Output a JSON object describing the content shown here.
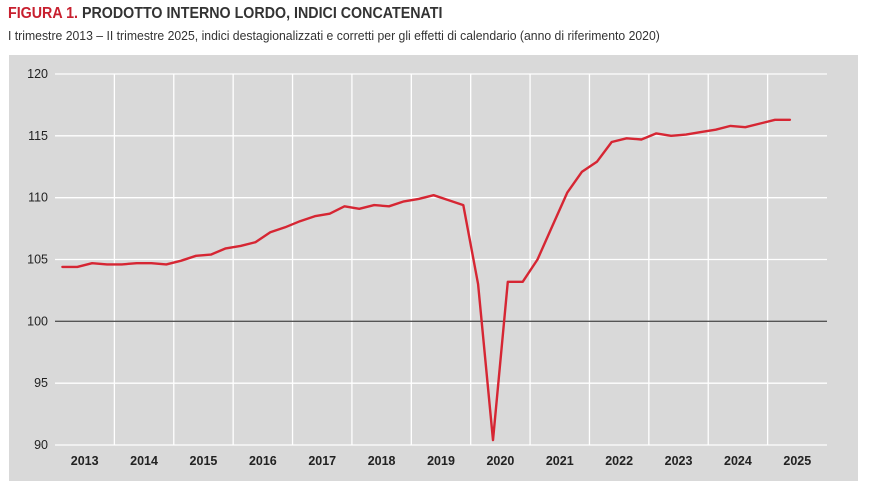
{
  "header": {
    "figure_label": "FIGURA 1.",
    "title": "PRODOTTO INTERNO LORDO, INDICI CONCATENATI",
    "subtitle": "I trimestre 2013 – II trimestre 2025, indici destagionalizzati e corretti per gli effetti di calendario (anno di riferimento 2020)"
  },
  "chart_data": {
    "type": "line",
    "title": "PRODOTTO INTERNO LORDO, INDICI CONCATENATI",
    "subtitle": "I trimestre 2013 – II trimestre 2025, indici destagionalizzati e corretti per gli effetti di calendario (anno di riferimento 2020)",
    "xlabel": "",
    "ylabel": "",
    "ylim": [
      90,
      120
    ],
    "yticks": [
      90,
      95,
      100,
      105,
      110,
      115,
      120
    ],
    "reference_line": 100,
    "grid": true,
    "legend": "none",
    "line_color": "#d62633",
    "years": [
      "2013",
      "2014",
      "2015",
      "2016",
      "2017",
      "2018",
      "2019",
      "2020",
      "2021",
      "2022",
      "2023",
      "2024",
      "2025"
    ],
    "x": [
      "2013-Q1",
      "2013-Q2",
      "2013-Q3",
      "2013-Q4",
      "2014-Q1",
      "2014-Q2",
      "2014-Q3",
      "2014-Q4",
      "2015-Q1",
      "2015-Q2",
      "2015-Q3",
      "2015-Q4",
      "2016-Q1",
      "2016-Q2",
      "2016-Q3",
      "2016-Q4",
      "2017-Q1",
      "2017-Q2",
      "2017-Q3",
      "2017-Q4",
      "2018-Q1",
      "2018-Q2",
      "2018-Q3",
      "2018-Q4",
      "2019-Q1",
      "2019-Q2",
      "2019-Q3",
      "2019-Q4",
      "2020-Q1",
      "2020-Q2",
      "2020-Q3",
      "2020-Q4",
      "2021-Q1",
      "2021-Q2",
      "2021-Q3",
      "2021-Q4",
      "2022-Q1",
      "2022-Q2",
      "2022-Q3",
      "2022-Q4",
      "2023-Q1",
      "2023-Q2",
      "2023-Q3",
      "2023-Q4",
      "2024-Q1",
      "2024-Q2",
      "2024-Q3",
      "2024-Q4",
      "2025-Q1",
      "2025-Q2"
    ],
    "series": [
      {
        "values": [
          104.4,
          104.4,
          104.7,
          104.6,
          104.6,
          104.7,
          104.7,
          104.6,
          104.9,
          105.3,
          105.4,
          105.9,
          106.1,
          106.4,
          107.2,
          107.6,
          108.1,
          108.5,
          108.7,
          109.3,
          109.1,
          109.4,
          109.3,
          109.7,
          109.9,
          110.2,
          109.8,
          109.4,
          103.0,
          90.4,
          103.2,
          103.2,
          105.0,
          107.7,
          110.4,
          112.1,
          112.9,
          114.5,
          114.8,
          114.7,
          115.2,
          115.0,
          115.1,
          115.3,
          115.5,
          115.8,
          115.7,
          116.0,
          116.3,
          116.3
        ]
      }
    ]
  }
}
